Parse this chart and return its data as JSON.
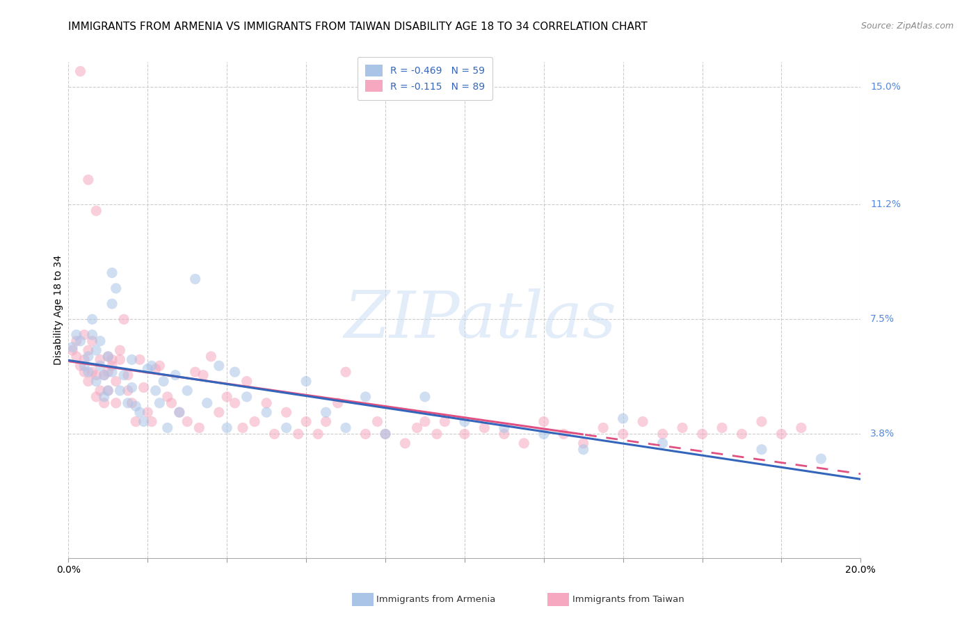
{
  "title": "IMMIGRANTS FROM ARMENIA VS IMMIGRANTS FROM TAIWAN DISABILITY AGE 18 TO 34 CORRELATION CHART",
  "source": "Source: ZipAtlas.com",
  "ylabel": "Disability Age 18 to 34",
  "xlim": [
    0.0,
    0.2
  ],
  "ylim": [
    -0.002,
    0.158
  ],
  "ytick_positions": [
    0.038,
    0.075,
    0.112,
    0.15
  ],
  "ytick_labels": [
    "3.8%",
    "7.5%",
    "11.2%",
    "15.0%"
  ],
  "grid_color": "#cccccc",
  "background_color": "#ffffff",
  "watermark": "ZIPatlas",
  "armenia_color": "#aac4e8",
  "armenia_line_color": "#3366bb",
  "armenia_R": -0.469,
  "armenia_N": 59,
  "taiwan_color": "#f5a8c0",
  "taiwan_line_color": "#e05080",
  "taiwan_R": -0.115,
  "taiwan_N": 89,
  "title_fontsize": 11,
  "axis_label_fontsize": 10,
  "tick_fontsize": 10,
  "legend_fontsize": 10,
  "source_fontsize": 9,
  "dot_size": 120,
  "dot_alpha": 0.55,
  "armenia_x": [
    0.001,
    0.002,
    0.003,
    0.004,
    0.005,
    0.005,
    0.006,
    0.006,
    0.007,
    0.007,
    0.008,
    0.008,
    0.009,
    0.009,
    0.01,
    0.01,
    0.011,
    0.011,
    0.011,
    0.012,
    0.013,
    0.014,
    0.015,
    0.016,
    0.016,
    0.017,
    0.018,
    0.019,
    0.02,
    0.021,
    0.022,
    0.023,
    0.024,
    0.025,
    0.027,
    0.028,
    0.03,
    0.032,
    0.035,
    0.038,
    0.04,
    0.042,
    0.045,
    0.05,
    0.055,
    0.06,
    0.065,
    0.07,
    0.075,
    0.08,
    0.09,
    0.1,
    0.11,
    0.12,
    0.13,
    0.14,
    0.15,
    0.175,
    0.19
  ],
  "armenia_y": [
    0.066,
    0.07,
    0.068,
    0.06,
    0.058,
    0.063,
    0.075,
    0.07,
    0.055,
    0.065,
    0.06,
    0.068,
    0.05,
    0.057,
    0.052,
    0.063,
    0.058,
    0.08,
    0.09,
    0.085,
    0.052,
    0.057,
    0.048,
    0.062,
    0.053,
    0.047,
    0.045,
    0.042,
    0.059,
    0.06,
    0.052,
    0.048,
    0.055,
    0.04,
    0.057,
    0.045,
    0.052,
    0.088,
    0.048,
    0.06,
    0.04,
    0.058,
    0.05,
    0.045,
    0.04,
    0.055,
    0.045,
    0.04,
    0.05,
    0.038,
    0.05,
    0.042,
    0.04,
    0.038,
    0.033,
    0.043,
    0.035,
    0.033,
    0.03
  ],
  "taiwan_x": [
    0.001,
    0.002,
    0.002,
    0.003,
    0.003,
    0.004,
    0.004,
    0.004,
    0.005,
    0.005,
    0.005,
    0.006,
    0.006,
    0.007,
    0.007,
    0.007,
    0.008,
    0.008,
    0.009,
    0.009,
    0.01,
    0.01,
    0.01,
    0.011,
    0.011,
    0.012,
    0.012,
    0.013,
    0.013,
    0.014,
    0.015,
    0.015,
    0.016,
    0.017,
    0.018,
    0.019,
    0.02,
    0.021,
    0.022,
    0.023,
    0.025,
    0.026,
    0.028,
    0.03,
    0.032,
    0.033,
    0.034,
    0.036,
    0.038,
    0.04,
    0.042,
    0.044,
    0.045,
    0.047,
    0.05,
    0.052,
    0.055,
    0.058,
    0.06,
    0.063,
    0.065,
    0.068,
    0.07,
    0.075,
    0.078,
    0.08,
    0.085,
    0.088,
    0.09,
    0.093,
    0.095,
    0.1,
    0.105,
    0.11,
    0.115,
    0.12,
    0.125,
    0.13,
    0.135,
    0.14,
    0.145,
    0.15,
    0.155,
    0.16,
    0.165,
    0.17,
    0.175,
    0.18,
    0.185
  ],
  "taiwan_y": [
    0.065,
    0.063,
    0.068,
    0.06,
    0.155,
    0.058,
    0.062,
    0.07,
    0.055,
    0.065,
    0.12,
    0.058,
    0.068,
    0.05,
    0.057,
    0.11,
    0.052,
    0.062,
    0.048,
    0.057,
    0.052,
    0.063,
    0.058,
    0.06,
    0.062,
    0.048,
    0.055,
    0.062,
    0.065,
    0.075,
    0.052,
    0.057,
    0.048,
    0.042,
    0.062,
    0.053,
    0.045,
    0.042,
    0.059,
    0.06,
    0.05,
    0.048,
    0.045,
    0.042,
    0.058,
    0.04,
    0.057,
    0.063,
    0.045,
    0.05,
    0.048,
    0.04,
    0.055,
    0.042,
    0.048,
    0.038,
    0.045,
    0.038,
    0.042,
    0.038,
    0.042,
    0.048,
    0.058,
    0.038,
    0.042,
    0.038,
    0.035,
    0.04,
    0.042,
    0.038,
    0.042,
    0.038,
    0.04,
    0.038,
    0.035,
    0.042,
    0.038,
    0.035,
    0.04,
    0.038,
    0.042,
    0.038,
    0.04,
    0.038,
    0.04,
    0.038,
    0.042,
    0.038,
    0.04
  ]
}
